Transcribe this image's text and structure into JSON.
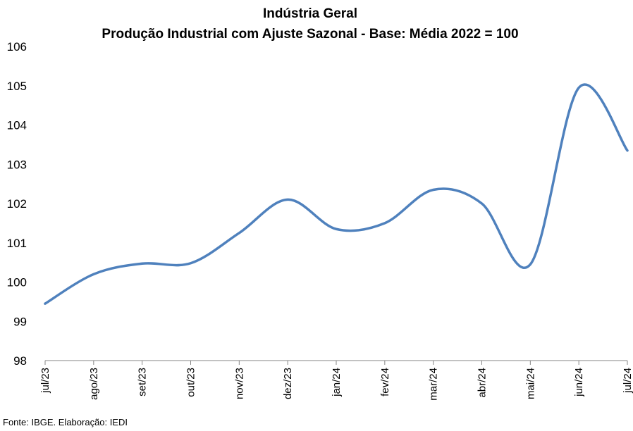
{
  "chart_data": {
    "type": "line",
    "title": "Indústria Geral",
    "subtitle": "Produção Industrial com Ajuste Sazonal - Base: Média 2022 = 100",
    "xlabel": "",
    "ylabel": "",
    "categories": [
      "jul/23",
      "ago/23",
      "set/23",
      "out/23",
      "nov/23",
      "dez/23",
      "jan/24",
      "fev/24",
      "mar/24",
      "abr/24",
      "mai/24",
      "jun/24",
      "jul/24"
    ],
    "series": [
      {
        "values": [
          99.45,
          100.2,
          100.47,
          100.48,
          101.25,
          102.1,
          101.35,
          101.5,
          102.35,
          102.0,
          100.45,
          104.95,
          103.35
        ]
      }
    ],
    "yticks": [
      "98",
      "99",
      "100",
      "101",
      "102",
      "103",
      "104",
      "105",
      "106"
    ],
    "ylim": [
      98,
      106
    ],
    "grid": false,
    "legend": "none",
    "line_color": "#4f81bd",
    "smooth": true
  },
  "source": "Fonte: IBGE. Elaboração: IEDI"
}
